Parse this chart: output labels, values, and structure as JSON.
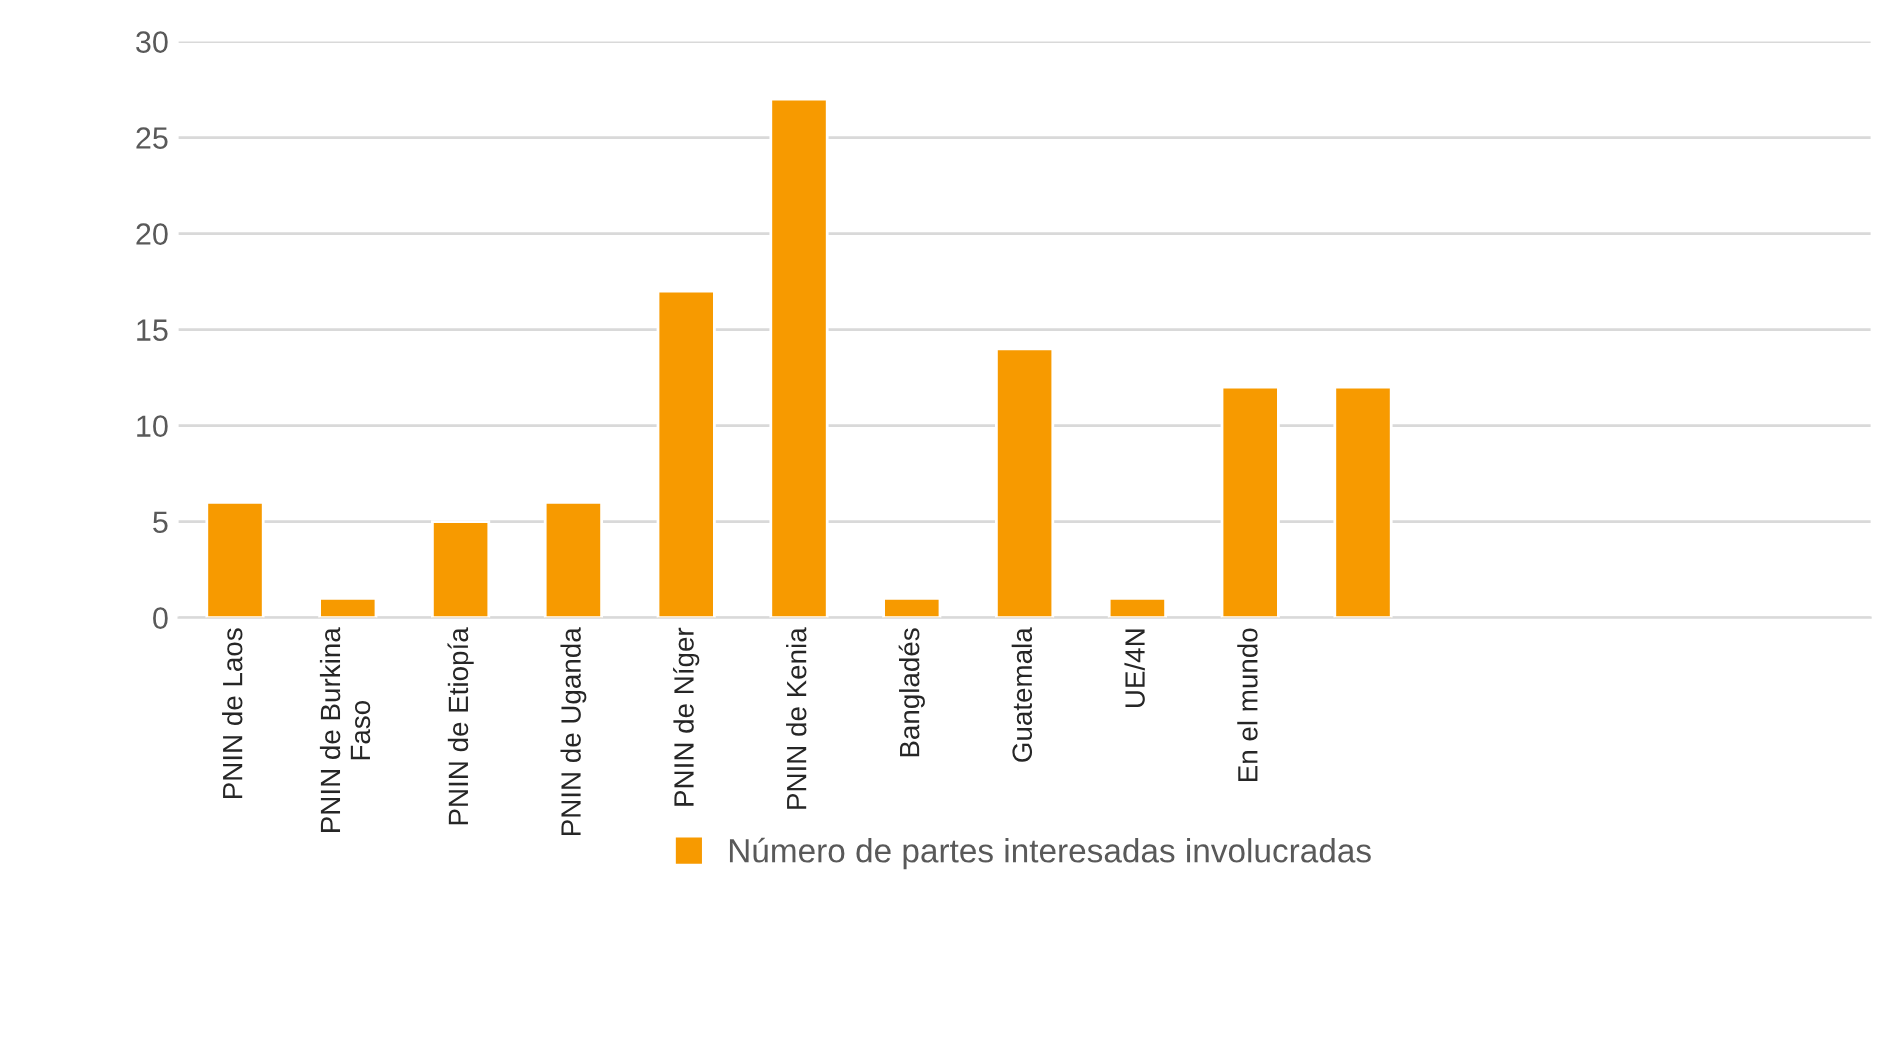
{
  "chart_data": {
    "type": "bar",
    "categories": [
      "PNIN de Laos",
      "PNIN de Burkina\nFaso",
      "PNIN de Etiopía",
      "PNIN de Uganda",
      "PNIN de Níger",
      "PNIN de Kenia",
      "Bangladés",
      "Guatemala",
      "UE/4N",
      "En el mundo",
      null,
      null,
      null,
      null,
      null
    ],
    "series": [
      {
        "name": "Número de partes interesadas involucradas",
        "color": "#f79a00",
        "values": [
          6,
          1,
          5,
          6,
          17,
          27,
          1,
          14,
          1,
          12,
          12,
          null,
          null,
          null,
          null
        ]
      }
    ],
    "ylim": [
      0,
      30
    ],
    "yticks": [
      0,
      5,
      10,
      15,
      20,
      25,
      30
    ],
    "grid": "y",
    "legend": "bottom"
  }
}
